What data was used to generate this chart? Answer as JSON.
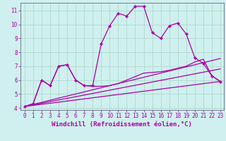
{
  "xlabel": "Windchill (Refroidissement éolien,°C)",
  "background_color": "#cff0ee",
  "line_color": "#aa00aa",
  "grid_color": "#b0d8d0",
  "xlim_min": -0.5,
  "xlim_max": 23.4,
  "ylim_min": 3.85,
  "ylim_max": 11.55,
  "yticks": [
    4,
    5,
    6,
    7,
    8,
    9,
    10,
    11
  ],
  "xticks": [
    0,
    1,
    2,
    3,
    4,
    5,
    6,
    7,
    8,
    9,
    10,
    11,
    12,
    13,
    14,
    15,
    16,
    17,
    18,
    19,
    20,
    21,
    22,
    23
  ],
  "main_x": [
    0,
    1,
    2,
    3,
    4,
    5,
    6,
    7,
    8,
    9,
    10,
    11,
    12,
    13,
    14,
    15,
    16,
    17,
    18,
    19,
    20,
    21,
    22,
    23
  ],
  "main_y": [
    4.1,
    4.3,
    6.0,
    5.6,
    7.0,
    7.1,
    6.0,
    5.6,
    5.6,
    8.6,
    9.9,
    10.8,
    10.6,
    11.3,
    11.3,
    9.4,
    9.0,
    9.9,
    10.1,
    9.3,
    7.6,
    7.2,
    6.3,
    5.9
  ],
  "line2_x": [
    0,
    1,
    2,
    3,
    4,
    5,
    6,
    7,
    8,
    9,
    10,
    11,
    12,
    13,
    14,
    15,
    16,
    17,
    18,
    19,
    20,
    21,
    22,
    23
  ],
  "line2_y": [
    4.1,
    4.3,
    6.0,
    5.6,
    7.0,
    7.1,
    6.0,
    5.6,
    5.55,
    5.55,
    5.6,
    5.75,
    6.0,
    6.25,
    6.5,
    6.55,
    6.6,
    6.7,
    6.85,
    7.0,
    7.3,
    7.5,
    6.3,
    5.9
  ],
  "trend1_x": [
    0,
    23
  ],
  "trend1_y": [
    4.1,
    7.55
  ],
  "trend2_x": [
    0,
    23
  ],
  "trend2_y": [
    4.1,
    6.8
  ],
  "trend3_x": [
    0,
    23
  ],
  "trend3_y": [
    4.1,
    5.9
  ],
  "xlabel_fontsize": 6.5,
  "tick_fontsize": 5.5,
  "markersize": 2.2,
  "linewidth": 0.9
}
